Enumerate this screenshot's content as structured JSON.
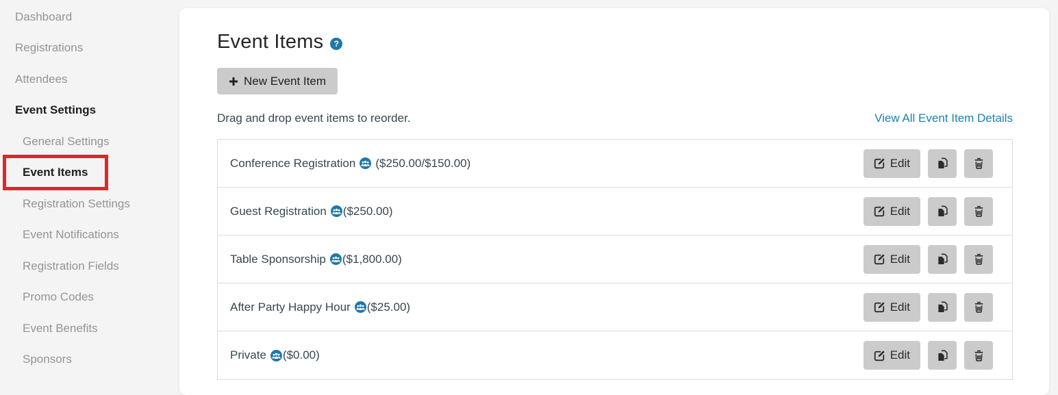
{
  "sidebar": {
    "items": [
      {
        "label": "Dashboard"
      },
      {
        "label": "Registrations"
      },
      {
        "label": "Attendees"
      },
      {
        "label": "Event Settings",
        "bold": true
      },
      {
        "label": "General Settings",
        "indent": true
      },
      {
        "label": "Event Items",
        "bold": true,
        "indent": true,
        "highlighted": true
      },
      {
        "label": "Registration Settings",
        "indent": true
      },
      {
        "label": "Event Notifications",
        "indent": true
      },
      {
        "label": "Registration Fields",
        "indent": true
      },
      {
        "label": "Promo Codes",
        "indent": true
      },
      {
        "label": "Event Benefits",
        "indent": true
      },
      {
        "label": "Sponsors",
        "indent": true
      }
    ]
  },
  "main": {
    "title": "Event Items",
    "help_glyph": "?",
    "new_button_label": "New Event Item",
    "instruction": "Drag and drop event items to reorder.",
    "view_all_link": "View All Event Item Details",
    "actions": {
      "edit_label": "Edit"
    },
    "items": [
      {
        "name": "Conference Registration",
        "price": "($250.00/$150.00)",
        "space_after_icon": true
      },
      {
        "name": "Guest Registration",
        "price": "($250.00)"
      },
      {
        "name": "Table Sponsorship",
        "price": "($1,800.00)"
      },
      {
        "name": "After Party Happy Hour",
        "price": "($25.00)"
      },
      {
        "name": "Private",
        "price": "($0.00)"
      }
    ]
  },
  "icons": {
    "title_help": "question-circle-icon",
    "new_item": "plus-icon",
    "item_visibility": "users-group-icon",
    "row_actions": [
      "edit-icon",
      "copy-icon",
      "trash-icon"
    ]
  },
  "colors": {
    "accent_blue": "#2178a8",
    "link_blue": "#1c82ab",
    "annotation_red": "#df2727",
    "button_gray": "#cbcbcb",
    "sidebar_text": "#949494",
    "text_dark": "#37474f"
  }
}
